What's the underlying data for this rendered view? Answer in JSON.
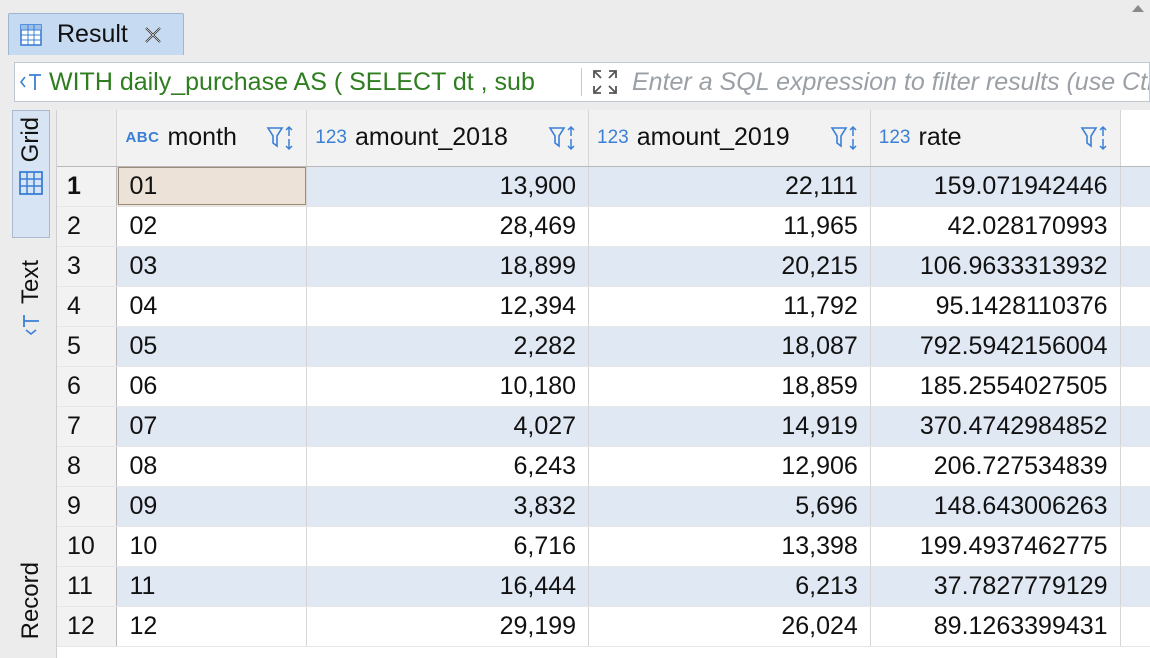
{
  "tab": {
    "label": "Result"
  },
  "query": {
    "text": "WITH daily_purchase AS ( SELECT dt , sub",
    "placeholder": "Enter a SQL expression to filter results (use Ctrl+Space)"
  },
  "side_tabs": [
    {
      "label": "Grid",
      "active": true
    },
    {
      "label": "Text",
      "active": false
    },
    {
      "label": "Record",
      "active": false
    }
  ],
  "columns": [
    {
      "type": "ABC",
      "name": "month"
    },
    {
      "type": "123",
      "name": "amount_2018"
    },
    {
      "type": "123",
      "name": "amount_2019"
    },
    {
      "type": "123",
      "name": "rate"
    }
  ],
  "rows": [
    [
      "1",
      "01",
      "13,900",
      "22,111",
      "159.071942446"
    ],
    [
      "2",
      "02",
      "28,469",
      "11,965",
      "42.028170993"
    ],
    [
      "3",
      "03",
      "18,899",
      "20,215",
      "106.9633313932"
    ],
    [
      "4",
      "04",
      "12,394",
      "11,792",
      "95.1428110376"
    ],
    [
      "5",
      "05",
      "2,282",
      "18,087",
      "792.5942156004"
    ],
    [
      "6",
      "06",
      "10,180",
      "18,859",
      "185.2554027505"
    ],
    [
      "7",
      "07",
      "4,027",
      "14,919",
      "370.4742984852"
    ],
    [
      "8",
      "08",
      "6,243",
      "12,906",
      "206.727534839"
    ],
    [
      "9",
      "09",
      "3,832",
      "5,696",
      "148.643006263"
    ],
    [
      "10",
      "10",
      "6,716",
      "13,398",
      "199.4937462775"
    ],
    [
      "11",
      "11",
      "16,444",
      "6,213",
      "37.7827779129"
    ],
    [
      "12",
      "12",
      "29,199",
      "26,024",
      "89.1263399431"
    ]
  ]
}
